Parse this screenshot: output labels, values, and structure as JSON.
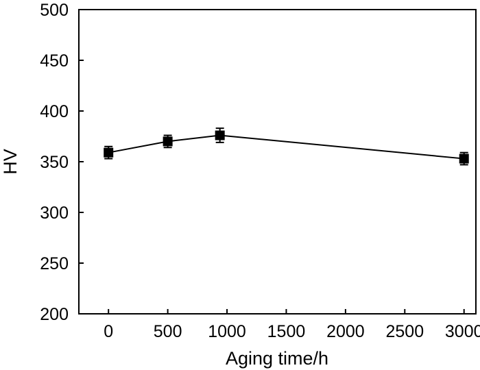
{
  "chart_data": {
    "type": "line",
    "title": "",
    "xlabel": "Aging time/h",
    "ylabel": "HV",
    "xlim": [
      -250,
      3100
    ],
    "ylim": [
      200,
      500
    ],
    "xticks": [
      0,
      500,
      1000,
      1500,
      2000,
      2500,
      3000
    ],
    "yticks": [
      200,
      250,
      300,
      350,
      400,
      450,
      500
    ],
    "xtick_labels": [
      "0",
      "500",
      "1000",
      "1500",
      "2000",
      "2500",
      "3000"
    ],
    "ytick_labels": [
      "200",
      "250",
      "300",
      "350",
      "400",
      "450",
      "500"
    ],
    "grid": false,
    "legend": "none",
    "marker": "square",
    "line_color": "#000000",
    "marker_color": "#000000",
    "series": [
      {
        "x": [
          0,
          500,
          940,
          3000
        ],
        "y": [
          359,
          370,
          376,
          353
        ],
        "error": [
          6,
          6,
          7,
          6
        ]
      }
    ]
  }
}
